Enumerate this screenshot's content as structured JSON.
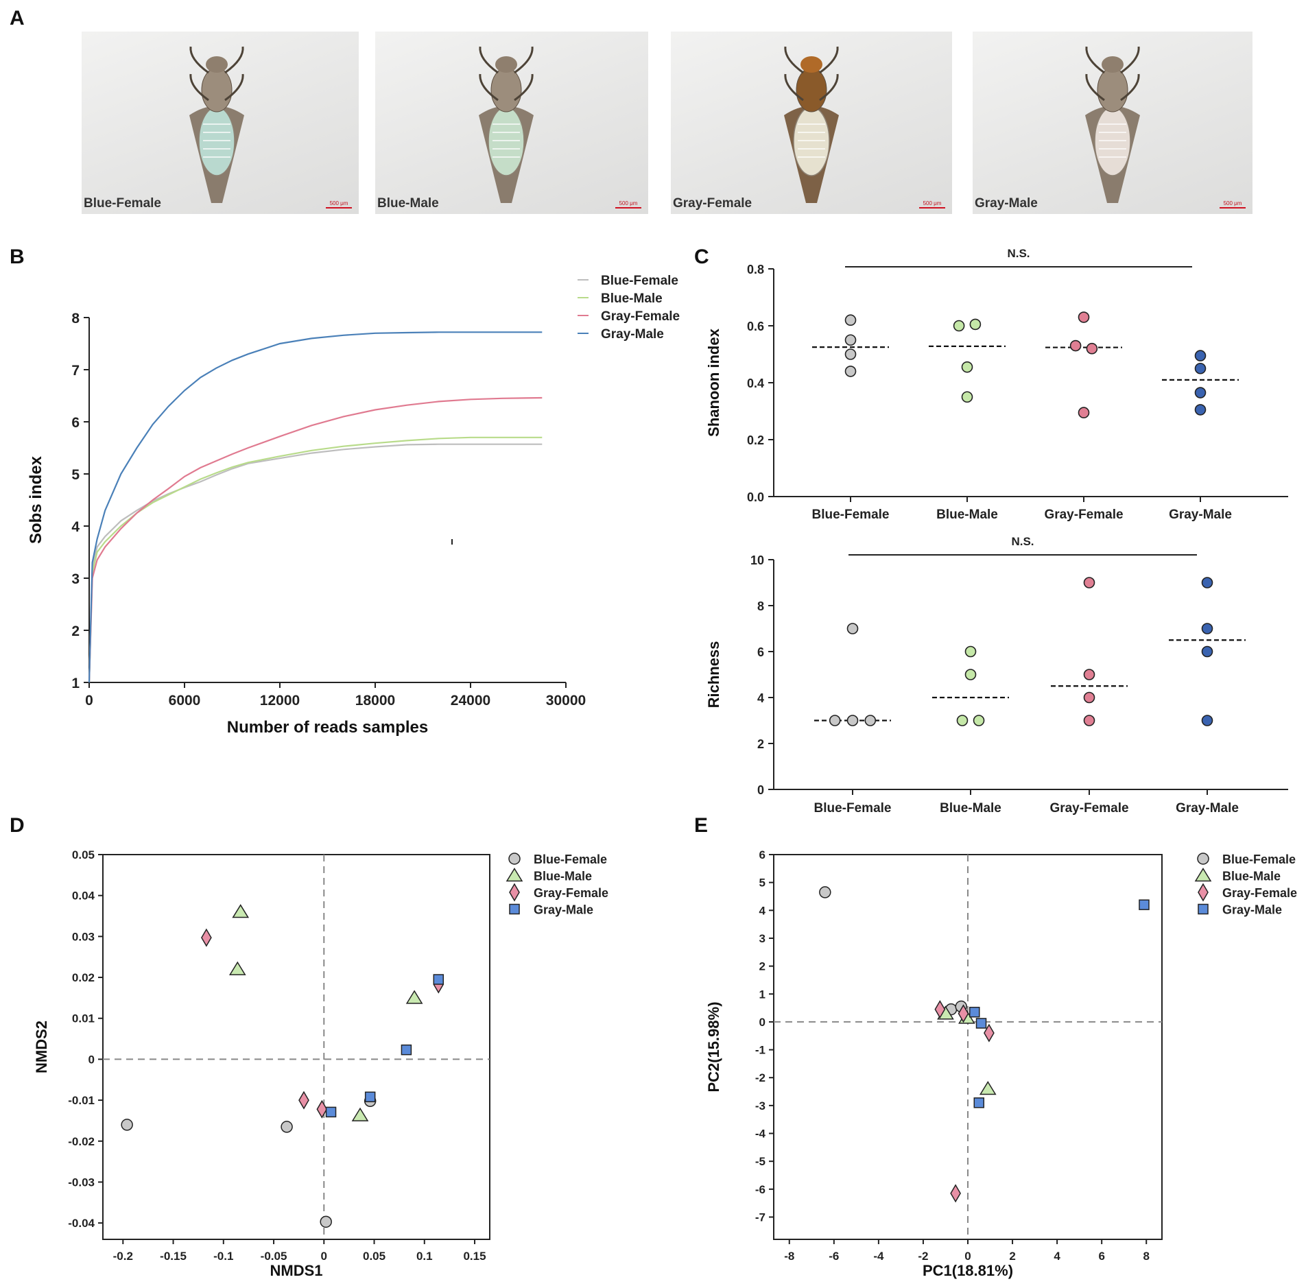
{
  "panels": {
    "A": {
      "letter": "A",
      "photos": [
        {
          "caption": "Blue-Female",
          "scale": "500 μm",
          "abdomen": "#b9d9cf"
        },
        {
          "caption": "Blue-Male",
          "scale": "500 μm",
          "abdomen": "#c5ddc8"
        },
        {
          "caption": "Gray-Female",
          "scale": "500 μm",
          "abdomen": "#e6e1cf"
        },
        {
          "caption": "Gray-Male",
          "scale": "500 μm",
          "abdomen": "#e6ddd6"
        }
      ]
    },
    "B": {
      "letter": "B"
    },
    "C": {
      "letter": "C"
    },
    "D": {
      "letter": "D"
    },
    "E": {
      "letter": "E"
    }
  },
  "colors": {
    "blue_female": "#c8c8c8",
    "blue_male": "#c5e8a8",
    "gray_female": "#e07f93",
    "gray_male": "#3a63b0",
    "line_blue_female": "#bdbdbd",
    "line_blue_male": "#b8db8a",
    "line_gray_female": "#e07a90",
    "line_gray_male": "#4a80b8",
    "nmds_gray_male": "#5b8bd9",
    "nmds_gray_female": "#e890a6",
    "nmds_blue_male": "#c9e9b1"
  },
  "chart_data": [
    {
      "id": "B",
      "type": "line",
      "xlabel": "Number of reads samples",
      "ylabel": "Sobs index",
      "xlim": [
        0,
        30000
      ],
      "ylim": [
        1,
        8
      ],
      "xticks": [
        0,
        6000,
        12000,
        18000,
        24000,
        30000
      ],
      "yticks": [
        1,
        2,
        3,
        4,
        5,
        6,
        7,
        8
      ],
      "legend": [
        "Blue-Female",
        "Blue-Male",
        "Gray-Female",
        "Gray-Male"
      ],
      "series": [
        {
          "name": "Blue-Female",
          "x": [
            0,
            200,
            500,
            1000,
            2000,
            3000,
            4000,
            5000,
            6000,
            7000,
            8000,
            9000,
            10000,
            12000,
            14000,
            16000,
            18000,
            20000,
            22000,
            24000,
            26000,
            28500
          ],
          "values": [
            1,
            3.2,
            3.6,
            3.8,
            4.1,
            4.3,
            4.48,
            4.62,
            4.74,
            4.85,
            4.98,
            5.1,
            5.2,
            5.3,
            5.4,
            5.47,
            5.52,
            5.56,
            5.57,
            5.57,
            5.57,
            5.57
          ]
        },
        {
          "name": "Blue-Male",
          "x": [
            0,
            200,
            500,
            1000,
            2000,
            3000,
            4000,
            5000,
            6000,
            7000,
            8000,
            9000,
            10000,
            12000,
            14000,
            16000,
            18000,
            20000,
            22000,
            24000,
            26000,
            28500
          ],
          "values": [
            1,
            3.1,
            3.5,
            3.7,
            4.0,
            4.25,
            4.45,
            4.6,
            4.75,
            4.9,
            5.02,
            5.13,
            5.22,
            5.34,
            5.45,
            5.53,
            5.59,
            5.64,
            5.68,
            5.7,
            5.7,
            5.7
          ]
        },
        {
          "name": "Gray-Female",
          "x": [
            0,
            200,
            500,
            1000,
            2000,
            3000,
            4000,
            5000,
            6000,
            7000,
            8000,
            9000,
            10000,
            12000,
            14000,
            16000,
            18000,
            20000,
            22000,
            24000,
            26000,
            28500
          ],
          "values": [
            1,
            3.0,
            3.35,
            3.6,
            3.95,
            4.25,
            4.5,
            4.72,
            4.95,
            5.12,
            5.25,
            5.38,
            5.5,
            5.72,
            5.93,
            6.1,
            6.23,
            6.32,
            6.39,
            6.43,
            6.45,
            6.46
          ]
        },
        {
          "name": "Gray-Male",
          "x": [
            0,
            200,
            500,
            1000,
            2000,
            3000,
            4000,
            5000,
            6000,
            7000,
            8000,
            9000,
            10000,
            12000,
            14000,
            16000,
            18000,
            20000,
            22000,
            24000,
            26000,
            28500
          ],
          "values": [
            1,
            3.3,
            3.75,
            4.3,
            5.0,
            5.5,
            5.95,
            6.3,
            6.6,
            6.85,
            7.03,
            7.18,
            7.3,
            7.5,
            7.6,
            7.66,
            7.7,
            7.71,
            7.72,
            7.72,
            7.72,
            7.72
          ]
        }
      ]
    },
    {
      "id": "C-top",
      "type": "scatter",
      "title": "N.S.",
      "ylabel": "Shanoon index",
      "ylim": [
        0,
        0.8
      ],
      "yticks": [
        "0.0",
        "0.2",
        "0.4",
        "0.6",
        "0.8"
      ],
      "categories": [
        "Blue-Female",
        "Blue-Male",
        "Gray-Female",
        "Gray-Male"
      ],
      "points": [
        [
          {
            "dx": 0,
            "y": 0.62
          },
          {
            "dx": 0,
            "y": 0.55
          },
          {
            "dx": 0,
            "y": 0.5
          },
          {
            "dx": 0,
            "y": 0.44
          }
        ],
        [
          {
            "dx": -0.07,
            "y": 0.6
          },
          {
            "dx": 0.07,
            "y": 0.605
          },
          {
            "dx": 0,
            "y": 0.455
          },
          {
            "dx": 0,
            "y": 0.35
          }
        ],
        [
          {
            "dx": 0,
            "y": 0.63
          },
          {
            "dx": -0.07,
            "y": 0.53
          },
          {
            "dx": 0.07,
            "y": 0.52
          },
          {
            "dx": 0,
            "y": 0.295
          }
        ],
        [
          {
            "dx": 0,
            "y": 0.495
          },
          {
            "dx": 0,
            "y": 0.45
          },
          {
            "dx": 0,
            "y": 0.365
          },
          {
            "dx": 0,
            "y": 0.305
          }
        ]
      ],
      "medians": [
        0.525,
        0.528,
        0.524,
        0.41
      ]
    },
    {
      "id": "C-bottom",
      "type": "scatter",
      "title": "N.S.",
      "ylabel": "Richness",
      "ylim": [
        0,
        10
      ],
      "yticks": [
        "0",
        "2",
        "4",
        "6",
        "8",
        "10"
      ],
      "categories": [
        "Blue-Female",
        "Blue-Male",
        "Gray-Female",
        "Gray-Male"
      ],
      "points": [
        [
          {
            "dx": 0,
            "y": 7
          },
          {
            "dx": -0.15,
            "y": 3
          },
          {
            "dx": 0,
            "y": 3
          },
          {
            "dx": 0.15,
            "y": 3
          }
        ],
        [
          {
            "dx": 0,
            "y": 6
          },
          {
            "dx": 0,
            "y": 5
          },
          {
            "dx": -0.07,
            "y": 3
          },
          {
            "dx": 0.07,
            "y": 3
          }
        ],
        [
          {
            "dx": 0,
            "y": 9
          },
          {
            "dx": 0,
            "y": 5
          },
          {
            "dx": 0,
            "y": 4
          },
          {
            "dx": 0,
            "y": 3
          }
        ],
        [
          {
            "dx": 0,
            "y": 9
          },
          {
            "dx": 0,
            "y": 7
          },
          {
            "dx": 0,
            "y": 6
          },
          {
            "dx": 0,
            "y": 3
          }
        ]
      ],
      "medians": [
        3,
        4,
        4.5,
        6.5
      ]
    },
    {
      "id": "D",
      "type": "scatter",
      "xlabel": "NMDS1",
      "ylabel": "NMDS2",
      "xlim": [
        -0.22,
        0.165
      ],
      "ylim": [
        -0.044,
        0.05
      ],
      "xticks": [
        "-0.2",
        "-0.15",
        "-0.1",
        "-0.05",
        "0",
        "0.05",
        "0.1",
        "0.15"
      ],
      "xtick_values": [
        -0.2,
        -0.15,
        -0.1,
        -0.05,
        0,
        0.05,
        0.1,
        0.15
      ],
      "yticks": [
        "-0.04",
        "-0.03",
        "-0.02",
        "-0.01",
        "0",
        "0.01",
        "0.02",
        "0.03",
        "0.04",
        "0.05"
      ],
      "ytick_values": [
        -0.04,
        -0.03,
        -0.02,
        -0.01,
        0,
        0.01,
        0.02,
        0.03,
        0.04,
        0.05
      ],
      "legend": [
        "Blue-Female",
        "Blue-Male",
        "Gray-Female",
        "Gray-Male"
      ],
      "series": [
        {
          "name": "Blue-Female",
          "marker": "circle",
          "points": [
            [
              -0.196,
              -0.016
            ],
            [
              -0.037,
              -0.0165
            ],
            [
              0.046,
              -0.0102
            ],
            [
              0.002,
              -0.0397
            ]
          ]
        },
        {
          "name": "Blue-Male",
          "marker": "triangle",
          "points": [
            [
              -0.083,
              0.036
            ],
            [
              -0.086,
              0.022
            ],
            [
              0.09,
              0.015
            ],
            [
              0.036,
              -0.0137
            ]
          ]
        },
        {
          "name": "Gray-Female",
          "marker": "diamond",
          "points": [
            [
              -0.117,
              0.0297
            ],
            [
              -0.02,
              -0.01
            ],
            [
              -0.002,
              -0.0122
            ],
            [
              0.114,
              0.0183
            ]
          ]
        },
        {
          "name": "Gray-Male",
          "marker": "square",
          "points": [
            [
              0.114,
              0.0195
            ],
            [
              0.082,
              0.0023
            ],
            [
              0.046,
              -0.0092
            ],
            [
              0.007,
              -0.0129
            ]
          ]
        }
      ]
    },
    {
      "id": "E",
      "type": "scatter",
      "xlabel": "PC1(18.81%)",
      "ylabel": "PC2(15.98%)",
      "xlim": [
        -8.7,
        8.7
      ],
      "ylim": [
        -7.8,
        6
      ],
      "xticks": [
        "-8",
        "-6",
        "-4",
        "-2",
        "0",
        "2",
        "4",
        "6",
        "8"
      ],
      "xtick_values": [
        -8,
        -6,
        -4,
        -2,
        0,
        2,
        4,
        6,
        8
      ],
      "yticks": [
        "-7",
        "-6",
        "-5",
        "-4",
        "-3",
        "-2",
        "-1",
        "0",
        "1",
        "2",
        "3",
        "4",
        "5",
        "6"
      ],
      "ytick_values": [
        -7,
        -6,
        -5,
        -4,
        -3,
        -2,
        -1,
        0,
        1,
        2,
        3,
        4,
        5,
        6
      ],
      "legend": [
        "Blue-Female",
        "Blue-Male",
        "Gray-Female",
        "Gray-Male"
      ],
      "series": [
        {
          "name": "Blue-Female",
          "marker": "circle",
          "points": [
            [
              -6.4,
              4.65
            ],
            [
              -0.75,
              0.45
            ],
            [
              -0.3,
              0.55
            ]
          ]
        },
        {
          "name": "Blue-Male",
          "marker": "triangle",
          "points": [
            [
              -1.0,
              0.3
            ],
            [
              -0.05,
              0.15
            ],
            [
              0.9,
              -2.4
            ]
          ]
        },
        {
          "name": "Gray-Female",
          "marker": "diamond",
          "points": [
            [
              -1.25,
              0.45
            ],
            [
              0.95,
              -0.4
            ],
            [
              -0.55,
              -6.15
            ],
            [
              -0.2,
              0.3
            ]
          ]
        },
        {
          "name": "Gray-Male",
          "marker": "square",
          "points": [
            [
              0.3,
              0.35
            ],
            [
              0.6,
              -0.05
            ],
            [
              0.5,
              -2.9
            ],
            [
              7.9,
              4.2
            ]
          ]
        }
      ]
    }
  ]
}
